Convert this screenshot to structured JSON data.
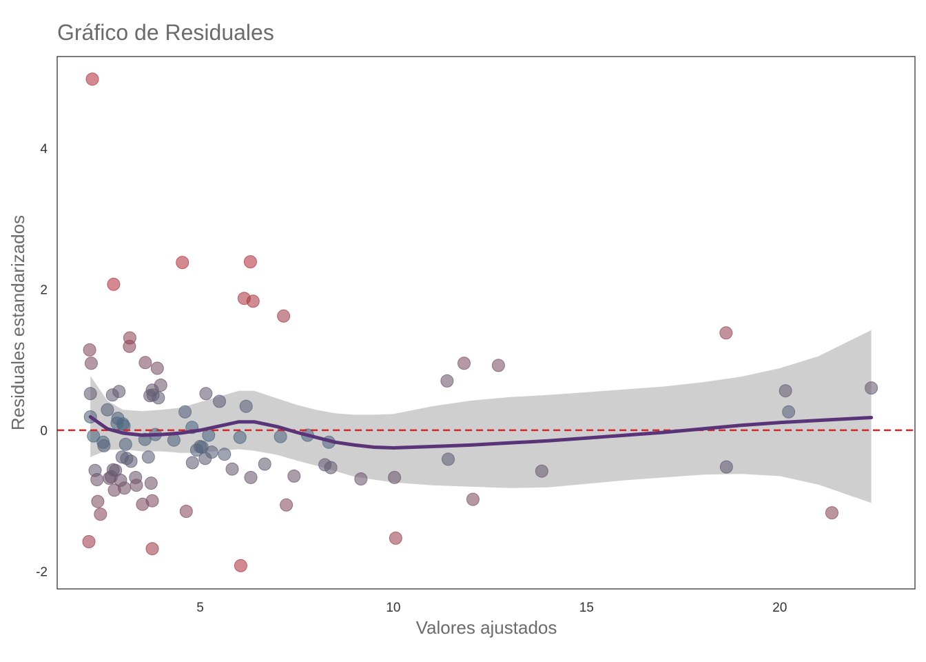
{
  "chart_data": {
    "type": "scatter",
    "title": "Gráfico de Residuales",
    "xlabel": "Valores ajustados",
    "ylabel": "Residuales estandarizados",
    "xlim": [
      1.3,
      23.5
    ],
    "ylim": [
      -2.25,
      5.3
    ],
    "xticks": [
      5,
      10,
      15,
      20
    ],
    "yticks": [
      -2,
      0,
      2,
      4
    ],
    "grid": false,
    "legend": "none",
    "reference_line": {
      "y": 0,
      "style": "dashed",
      "color": "#d62728"
    },
    "colors": {
      "low_residual": "#4a6a85",
      "high_residual": "#b5343f",
      "smooth_line": "#5a3478",
      "confidence_band": "#bdbdbd",
      "reference": "#d62728",
      "frame": "#333333"
    },
    "points": [
      {
        "x": 2.14,
        "y": 1.14
      },
      {
        "x": 2.16,
        "y": 0.52
      },
      {
        "x": 2.16,
        "y": 0.19
      },
      {
        "x": 2.12,
        "y": -1.58
      },
      {
        "x": 2.18,
        "y": 0.95
      },
      {
        "x": 2.21,
        "y": 4.98
      },
      {
        "x": 2.24,
        "y": -0.08
      },
      {
        "x": 2.28,
        "y": -0.57
      },
      {
        "x": 2.33,
        "y": -0.7
      },
      {
        "x": 2.35,
        "y": -1.01
      },
      {
        "x": 2.42,
        "y": -1.19
      },
      {
        "x": 2.49,
        "y": -0.17
      },
      {
        "x": 2.51,
        "y": -0.22
      },
      {
        "x": 2.6,
        "y": 0.29
      },
      {
        "x": 2.65,
        "y": -0.68
      },
      {
        "x": 2.7,
        "y": -0.66
      },
      {
        "x": 2.73,
        "y": 0.5
      },
      {
        "x": 2.75,
        "y": -0.56
      },
      {
        "x": 2.76,
        "y": 2.07
      },
      {
        "x": 2.78,
        "y": -0.85
      },
      {
        "x": 2.81,
        "y": -0.57
      },
      {
        "x": 2.85,
        "y": 0.1
      },
      {
        "x": 2.87,
        "y": 0.17
      },
      {
        "x": 2.9,
        "y": 0.55
      },
      {
        "x": 2.94,
        "y": -0.71
      },
      {
        "x": 2.98,
        "y": -0.38
      },
      {
        "x": 3.0,
        "y": 0.09
      },
      {
        "x": 3.03,
        "y": 0.06
      },
      {
        "x": 3.04,
        "y": -0.82
      },
      {
        "x": 3.07,
        "y": -0.2
      },
      {
        "x": 3.1,
        "y": -0.4
      },
      {
        "x": 3.17,
        "y": 1.19
      },
      {
        "x": 3.18,
        "y": 1.31
      },
      {
        "x": 3.21,
        "y": -0.44
      },
      {
        "x": 3.33,
        "y": -0.67
      },
      {
        "x": 3.35,
        "y": -0.78
      },
      {
        "x": 3.51,
        "y": -1.05
      },
      {
        "x": 3.57,
        "y": -0.13
      },
      {
        "x": 3.58,
        "y": 0.96
      },
      {
        "x": 3.66,
        "y": -0.38
      },
      {
        "x": 3.7,
        "y": 0.49
      },
      {
        "x": 3.73,
        "y": -0.75
      },
      {
        "x": 3.76,
        "y": 0.57
      },
      {
        "x": 3.76,
        "y": -1.0
      },
      {
        "x": 3.76,
        "y": -1.68
      },
      {
        "x": 3.78,
        "y": 0.5
      },
      {
        "x": 3.84,
        "y": -0.06
      },
      {
        "x": 3.89,
        "y": 0.88
      },
      {
        "x": 3.92,
        "y": 0.46
      },
      {
        "x": 3.98,
        "y": 0.64
      },
      {
        "x": 4.32,
        "y": -0.14
      },
      {
        "x": 4.54,
        "y": 2.38
      },
      {
        "x": 4.61,
        "y": 0.26
      },
      {
        "x": 4.64,
        "y": -1.15
      },
      {
        "x": 4.79,
        "y": 0.04
      },
      {
        "x": 4.8,
        "y": -0.46
      },
      {
        "x": 4.91,
        "y": -0.28
      },
      {
        "x": 5.0,
        "y": -0.23
      },
      {
        "x": 5.05,
        "y": -0.24
      },
      {
        "x": 5.13,
        "y": -0.4
      },
      {
        "x": 5.15,
        "y": 0.52
      },
      {
        "x": 5.22,
        "y": -0.07
      },
      {
        "x": 5.3,
        "y": -0.31
      },
      {
        "x": 5.5,
        "y": 0.41
      },
      {
        "x": 5.63,
        "y": -0.34
      },
      {
        "x": 5.83,
        "y": -0.55
      },
      {
        "x": 6.03,
        "y": -0.1
      },
      {
        "x": 6.05,
        "y": -1.92
      },
      {
        "x": 6.14,
        "y": 1.87
      },
      {
        "x": 6.19,
        "y": 0.34
      },
      {
        "x": 6.3,
        "y": 2.39
      },
      {
        "x": 6.31,
        "y": -0.67
      },
      {
        "x": 6.37,
        "y": 1.83
      },
      {
        "x": 6.67,
        "y": -0.48
      },
      {
        "x": 7.08,
        "y": -0.09
      },
      {
        "x": 7.16,
        "y": 1.62
      },
      {
        "x": 7.23,
        "y": -1.06
      },
      {
        "x": 7.43,
        "y": -0.65
      },
      {
        "x": 7.78,
        "y": -0.07
      },
      {
        "x": 8.23,
        "y": -0.49
      },
      {
        "x": 8.33,
        "y": -0.17
      },
      {
        "x": 8.38,
        "y": -0.53
      },
      {
        "x": 9.16,
        "y": -0.69
      },
      {
        "x": 10.03,
        "y": -0.67
      },
      {
        "x": 10.06,
        "y": -1.53
      },
      {
        "x": 11.39,
        "y": 0.7
      },
      {
        "x": 11.42,
        "y": -0.41
      },
      {
        "x": 11.83,
        "y": 0.95
      },
      {
        "x": 12.06,
        "y": -0.98
      },
      {
        "x": 12.72,
        "y": 0.92
      },
      {
        "x": 13.84,
        "y": -0.58
      },
      {
        "x": 18.61,
        "y": 1.38
      },
      {
        "x": 18.62,
        "y": -0.52
      },
      {
        "x": 20.15,
        "y": 0.56
      },
      {
        "x": 20.23,
        "y": 0.26
      },
      {
        "x": 21.35,
        "y": -1.17
      },
      {
        "x": 22.37,
        "y": 0.6
      }
    ],
    "smooth": [
      {
        "x": 2.16,
        "y": 0.19,
        "lo": -0.38,
        "hi": 0.77
      },
      {
        "x": 2.6,
        "y": 0.02,
        "lo": -0.28,
        "hi": 0.42
      },
      {
        "x": 3.0,
        "y": -0.04,
        "lo": -0.27,
        "hi": 0.29
      },
      {
        "x": 3.5,
        "y": -0.07,
        "lo": -0.3,
        "hi": 0.27
      },
      {
        "x": 4.0,
        "y": -0.06,
        "lo": -0.3,
        "hi": 0.29
      },
      {
        "x": 4.5,
        "y": -0.04,
        "lo": -0.32,
        "hi": 0.32
      },
      {
        "x": 5.0,
        "y": 0.0,
        "lo": -0.32,
        "hi": 0.4
      },
      {
        "x": 5.5,
        "y": 0.06,
        "lo": -0.29,
        "hi": 0.48
      },
      {
        "x": 6.0,
        "y": 0.12,
        "lo": -0.27,
        "hi": 0.56
      },
      {
        "x": 6.4,
        "y": 0.12,
        "lo": -0.29,
        "hi": 0.56
      },
      {
        "x": 7.0,
        "y": 0.05,
        "lo": -0.35,
        "hi": 0.45
      },
      {
        "x": 7.5,
        "y": -0.03,
        "lo": -0.43,
        "hi": 0.36
      },
      {
        "x": 8.0,
        "y": -0.1,
        "lo": -0.5,
        "hi": 0.29
      },
      {
        "x": 8.5,
        "y": -0.17,
        "lo": -0.58,
        "hi": 0.24
      },
      {
        "x": 9.0,
        "y": -0.21,
        "lo": -0.66,
        "hi": 0.22
      },
      {
        "x": 9.5,
        "y": -0.24,
        "lo": -0.7,
        "hi": 0.22
      },
      {
        "x": 10.0,
        "y": -0.25,
        "lo": -0.74,
        "hi": 0.23
      },
      {
        "x": 11.0,
        "y": -0.23,
        "lo": -0.78,
        "hi": 0.34
      },
      {
        "x": 12.0,
        "y": -0.21,
        "lo": -0.8,
        "hi": 0.42
      },
      {
        "x": 13.0,
        "y": -0.18,
        "lo": -0.82,
        "hi": 0.47
      },
      {
        "x": 14.0,
        "y": -0.15,
        "lo": -0.81,
        "hi": 0.5
      },
      {
        "x": 15.0,
        "y": -0.11,
        "lo": -0.76,
        "hi": 0.54
      },
      {
        "x": 16.0,
        "y": -0.07,
        "lo": -0.71,
        "hi": 0.58
      },
      {
        "x": 17.0,
        "y": -0.03,
        "lo": -0.67,
        "hi": 0.62
      },
      {
        "x": 18.0,
        "y": 0.02,
        "lo": -0.63,
        "hi": 0.68
      },
      {
        "x": 19.0,
        "y": 0.07,
        "lo": -0.62,
        "hi": 0.76
      },
      {
        "x": 20.0,
        "y": 0.11,
        "lo": -0.65,
        "hi": 0.88
      },
      {
        "x": 21.0,
        "y": 0.14,
        "lo": -0.77,
        "hi": 1.05
      },
      {
        "x": 22.37,
        "y": 0.18,
        "lo": -1.03,
        "hi": 1.42
      }
    ]
  }
}
